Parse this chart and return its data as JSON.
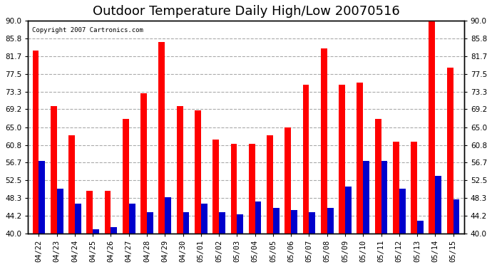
{
  "title": "Outdoor Temperature Daily High/Low 20070516",
  "copyright": "Copyright 2007 Cartronics.com",
  "categories": [
    "04/22",
    "04/23",
    "04/24",
    "04/25",
    "04/26",
    "04/27",
    "04/28",
    "04/29",
    "04/30",
    "05/01",
    "05/02",
    "05/03",
    "05/04",
    "05/05",
    "05/06",
    "05/07",
    "05/08",
    "05/09",
    "05/10",
    "05/11",
    "05/12",
    "05/13",
    "05/14",
    "05/15"
  ],
  "highs": [
    83.0,
    70.0,
    63.0,
    50.0,
    50.0,
    67.0,
    73.0,
    85.0,
    70.0,
    69.0,
    62.0,
    61.0,
    61.0,
    63.0,
    65.0,
    75.0,
    83.5,
    75.0,
    75.5,
    67.0,
    61.5,
    61.5,
    90.0,
    79.0
  ],
  "lows": [
    57.0,
    50.5,
    47.0,
    41.0,
    41.5,
    47.0,
    45.0,
    48.5,
    45.0,
    47.0,
    45.0,
    44.5,
    47.5,
    46.0,
    45.5,
    45.0,
    46.0,
    51.0,
    57.0,
    57.0,
    50.5,
    43.0,
    53.5,
    48.0
  ],
  "high_color": "#ff0000",
  "low_color": "#0000cc",
  "ylim": [
    40.0,
    90.0
  ],
  "yticks": [
    40.0,
    44.2,
    48.3,
    52.5,
    56.7,
    60.8,
    65.0,
    69.2,
    73.3,
    77.5,
    81.7,
    85.8,
    90.0
  ],
  "ytick_labels": [
    "40.0",
    "44.2",
    "48.3",
    "52.5",
    "56.7",
    "60.8",
    "65.0",
    "69.2",
    "73.3",
    "77.5",
    "81.7",
    "85.8",
    "90.0"
  ],
  "background_color": "#ffffff",
  "grid_color": "#aaaaaa",
  "title_fontsize": 13,
  "axis_fontsize": 7.5,
  "bar_width": 0.35
}
